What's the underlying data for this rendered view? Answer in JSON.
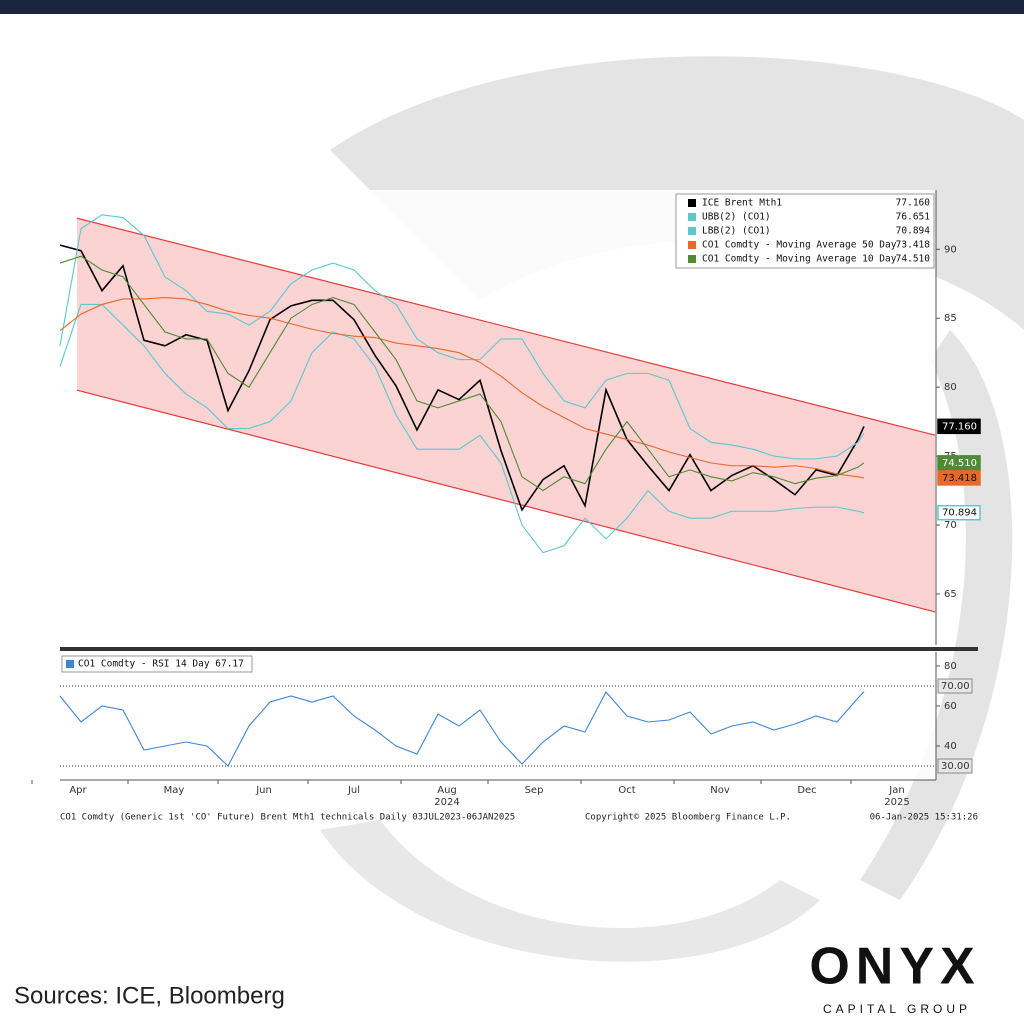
{
  "chart_data": [
    {
      "type": "line",
      "x": [
        0,
        7,
        14,
        21,
        28,
        35,
        42,
        49,
        56,
        63,
        70,
        77,
        84,
        91,
        98,
        105,
        112,
        119,
        126,
        133,
        140,
        147,
        154,
        161,
        168,
        175,
        182,
        189,
        196,
        203,
        210,
        217,
        224,
        231,
        238,
        245,
        252,
        259,
        266,
        268
      ],
      "series": [
        {
          "name": "ICE Brent Mth1",
          "color": "#000000",
          "legend_value": "77.160",
          "values": [
            90.3,
            89.9,
            87.0,
            88.8,
            83.4,
            83.0,
            83.8,
            83.4,
            78.3,
            81.2,
            84.9,
            85.9,
            86.3,
            86.3,
            84.9,
            82.3,
            80.1,
            76.9,
            79.8,
            79.1,
            80.5,
            75.4,
            71.1,
            73.3,
            74.3,
            71.4,
            79.8,
            76.2,
            74.3,
            72.5,
            75.1,
            72.5,
            73.6,
            74.3,
            73.3,
            72.2,
            74.0,
            73.6,
            76.2,
            77.16
          ]
        },
        {
          "name": "UBB(2) (CO1)",
          "color": "#5bc8d0",
          "legend_value": "76.651",
          "values": [
            83.0,
            91.5,
            92.5,
            92.3,
            91.0,
            88.0,
            87.0,
            85.5,
            85.3,
            84.5,
            85.5,
            87.5,
            88.5,
            89.0,
            88.5,
            87.0,
            86.0,
            83.5,
            82.5,
            82.0,
            82.0,
            83.5,
            83.5,
            81.0,
            79.0,
            78.5,
            80.5,
            81.0,
            81.0,
            80.5,
            77.0,
            76.0,
            75.8,
            75.5,
            75.0,
            74.8,
            74.8,
            75.0,
            76.0,
            76.651
          ]
        },
        {
          "name": "LBB(2) (CO1)",
          "color": "#5bc8d0",
          "legend_value": "70.894",
          "values": [
            81.5,
            86.0,
            86.0,
            84.5,
            83.0,
            81.0,
            79.5,
            78.5,
            77.0,
            77.0,
            77.5,
            79.0,
            82.5,
            84.0,
            83.5,
            81.5,
            78.0,
            75.5,
            75.5,
            75.5,
            76.5,
            74.5,
            70.0,
            68.0,
            68.5,
            70.5,
            69.0,
            70.5,
            72.5,
            71.0,
            70.5,
            70.5,
            71.0,
            71.0,
            71.0,
            71.2,
            71.3,
            71.3,
            71.0,
            70.894
          ]
        },
        {
          "name": "CO1 Comdty - Moving Average 50 Day",
          "color": "#e8692a",
          "legend_value": "73.418",
          "values": [
            84.1,
            85.3,
            86.0,
            86.4,
            86.4,
            86.5,
            86.4,
            86.0,
            85.5,
            85.2,
            85.0,
            84.6,
            84.2,
            83.9,
            83.7,
            83.6,
            83.2,
            83.0,
            82.8,
            82.5,
            81.8,
            80.8,
            79.6,
            78.6,
            77.8,
            77.0,
            76.6,
            76.2,
            75.8,
            75.3,
            74.9,
            74.5,
            74.3,
            74.3,
            74.2,
            74.3,
            74.1,
            73.7,
            73.5,
            73.418
          ]
        },
        {
          "name": "CO1 Comdty - Moving Average 10 Day",
          "color": "#4f8a35",
          "legend_value": "74.510",
          "values": [
            89.0,
            89.5,
            88.5,
            88.0,
            86.0,
            84.0,
            83.5,
            83.5,
            81.0,
            80.0,
            82.5,
            85.0,
            86.0,
            86.5,
            86.0,
            84.0,
            82.0,
            79.0,
            78.5,
            79.0,
            79.5,
            77.5,
            73.5,
            72.5,
            73.5,
            73.0,
            75.5,
            77.5,
            75.5,
            73.5,
            74.0,
            73.5,
            73.2,
            73.8,
            73.5,
            73.0,
            73.4,
            73.6,
            74.2,
            74.51
          ]
        }
      ],
      "channel": {
        "color": "#e83a3a",
        "fill": "#fbd3d3",
        "x": [
          5.7,
          291.7
        ],
        "upper": [
          92.25,
          76.52
        ],
        "lower": [
          79.78,
          63.7
        ]
      },
      "xlim": [
        0,
        292
      ],
      "xticks": [
        {
          "value": 6,
          "label": "Apr"
        },
        {
          "value": 38,
          "label": "May"
        },
        {
          "value": 68,
          "label": "Jun"
        },
        {
          "value": 98,
          "label": "Jul"
        },
        {
          "value": 129,
          "label": "Aug"
        },
        {
          "value": 158,
          "label": "Sep"
        },
        {
          "value": 189,
          "label": "Oct"
        },
        {
          "value": 220,
          "label": "Nov"
        },
        {
          "value": 249,
          "label": "Dec"
        },
        {
          "value": 279,
          "label": "Jan"
        }
      ],
      "years": [
        "2024",
        "2025"
      ],
      "ylim": [
        61.3,
        94.3
      ],
      "yticks": [
        65,
        70,
        75,
        80,
        85,
        90
      ]
    },
    {
      "type": "line",
      "x": [
        0,
        7,
        14,
        21,
        28,
        35,
        42,
        49,
        56,
        63,
        70,
        77,
        84,
        91,
        98,
        105,
        112,
        119,
        126,
        133,
        140,
        147,
        154,
        161,
        168,
        175,
        182,
        189,
        196,
        203,
        210,
        217,
        224,
        231,
        238,
        245,
        252,
        259,
        266,
        268
      ],
      "series": [
        {
          "name": "CO1 Comdty - RSI 14 Day 67.17",
          "color": "#3d86d6",
          "values": [
            65,
            52,
            60,
            58,
            38,
            40,
            42,
            40,
            30,
            50,
            62,
            65,
            62,
            65,
            55,
            48,
            40,
            36,
            56,
            50,
            58,
            42,
            31,
            42,
            50,
            47,
            67,
            55,
            52,
            53,
            57,
            46,
            50,
            52,
            48,
            51,
            55,
            52,
            64,
            67.17
          ]
        }
      ],
      "hlines": [
        {
          "value": 70,
          "label": "70.00"
        },
        {
          "value": 30,
          "label": "30.00"
        }
      ],
      "xlim": [
        0,
        292
      ],
      "ylim": [
        23,
        87
      ],
      "yticks": [
        40,
        60,
        80
      ]
    }
  ],
  "footer": {
    "left": "CO1 Comdty (Generic 1st 'CO' Future) Brent Mth1 technicals  Daily 03JUL2023-06JAN2025",
    "center": "Copyright© 2025 Bloomberg Finance L.P.",
    "right": "06-Jan-2025 15:31:26"
  },
  "source": "Sources: ICE, Bloomberg",
  "logo": {
    "name": "ONYX",
    "tagline": "CAPITAL GROUP"
  }
}
